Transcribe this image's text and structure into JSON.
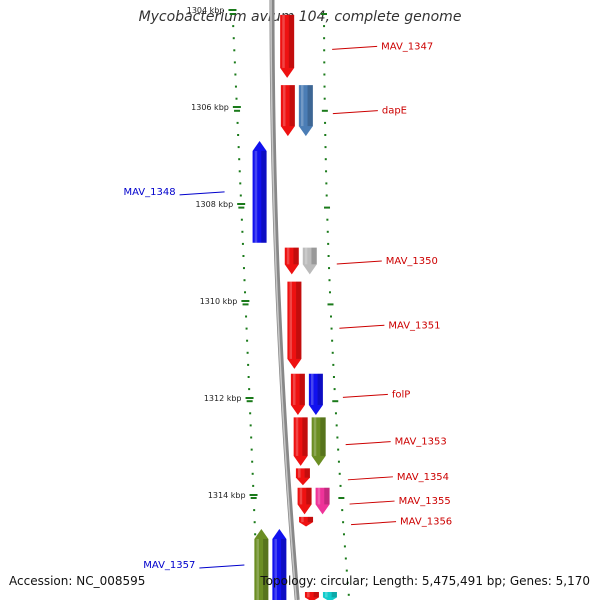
{
  "header": {
    "title": "Mycobacterium avium 104, complete genome"
  },
  "footer": {
    "accession": "Accession: NC_008595",
    "summary": "Topology: circular; Length: 5,475,491 bp; Genes: 5,170"
  },
  "colors": {
    "red": "#ee1111",
    "blue": "#1111ee",
    "steel_blue": "#4b7db5",
    "olive": "#6b8e23",
    "gray": "#bbbbbb",
    "magenta": "#ee3399",
    "light_blue": "#b0b0ff",
    "cyan": "#11cccc",
    "tick": "#1a7a1a",
    "backbone": "#888888",
    "forward_label": "#cc0000",
    "reverse_label": "#0000cc"
  },
  "axis": {
    "unit": "kbp",
    "ticks": [
      {
        "kbp": 1304,
        "label": "1304 kbp"
      },
      {
        "kbp": 1306,
        "label": "1306 kbp"
      },
      {
        "kbp": 1308,
        "label": "1308 kbp"
      },
      {
        "kbp": 1310,
        "label": "1310 kbp"
      },
      {
        "kbp": 1312,
        "label": "1312 kbp"
      },
      {
        "kbp": 1314,
        "label": "1314 kbp"
      }
    ]
  },
  "genes": [
    {
      "label": "MAV_1347",
      "strand": "forward",
      "lane": 0,
      "start_kbp": 1304.1,
      "end_kbp": 1305.4,
      "color": "red"
    },
    {
      "label": "dapE",
      "strand": "forward",
      "lane": 0,
      "start_kbp": 1305.55,
      "end_kbp": 1306.6,
      "color": "red"
    },
    {
      "label": "",
      "strand": "forward",
      "lane": 1,
      "start_kbp": 1305.55,
      "end_kbp": 1306.6,
      "color": "steel_blue"
    },
    {
      "label": "MAV_1348",
      "strand": "reverse",
      "lane": 0,
      "start_kbp": 1306.7,
      "end_kbp": 1308.8,
      "color": "blue"
    },
    {
      "label": "MAV_1350",
      "strand": "forward",
      "lane": 0,
      "start_kbp": 1308.9,
      "end_kbp": 1309.45,
      "color": "red"
    },
    {
      "label": "",
      "strand": "forward",
      "lane": 1,
      "start_kbp": 1308.9,
      "end_kbp": 1309.45,
      "color": "gray"
    },
    {
      "label": "MAV_1351",
      "strand": "forward",
      "lane": 0,
      "start_kbp": 1309.6,
      "end_kbp": 1311.4,
      "color": "red"
    },
    {
      "label": "folP",
      "strand": "forward",
      "lane": 0,
      "start_kbp": 1311.5,
      "end_kbp": 1312.35,
      "color": "red"
    },
    {
      "label": "",
      "strand": "forward",
      "lane": 1,
      "start_kbp": 1311.5,
      "end_kbp": 1312.35,
      "color": "blue"
    },
    {
      "label": "MAV_1353",
      "strand": "forward",
      "lane": 0,
      "start_kbp": 1312.4,
      "end_kbp": 1313.4,
      "color": "red"
    },
    {
      "label": "",
      "strand": "forward",
      "lane": 1,
      "start_kbp": 1312.4,
      "end_kbp": 1313.4,
      "color": "olive"
    },
    {
      "label": "MAV_1354",
      "strand": "forward",
      "lane": 0,
      "start_kbp": 1313.45,
      "end_kbp": 1313.8,
      "color": "red"
    },
    {
      "label": "MAV_1355",
      "strand": "forward",
      "lane": 0,
      "start_kbp": 1313.85,
      "end_kbp": 1314.4,
      "color": "red"
    },
    {
      "label": "",
      "strand": "forward",
      "lane": 1,
      "start_kbp": 1313.85,
      "end_kbp": 1314.4,
      "color": "magenta"
    },
    {
      "label": "MAV_1356",
      "strand": "forward",
      "lane": 0,
      "start_kbp": 1314.45,
      "end_kbp": 1314.65,
      "color": "red"
    },
    {
      "label": "MAV_1357",
      "strand": "reverse",
      "lane": 1,
      "start_kbp": 1314.7,
      "end_kbp": 1316.2,
      "color": "olive"
    },
    {
      "label": "",
      "strand": "reverse",
      "lane": 0,
      "start_kbp": 1314.7,
      "end_kbp": 1316.2,
      "color": "blue"
    },
    {
      "label": "",
      "strand": "forward",
      "lane": 0,
      "start_kbp": 1316.0,
      "end_kbp": 1316.2,
      "color": "red"
    },
    {
      "label": "",
      "strand": "forward",
      "lane": 1,
      "start_kbp": 1316.0,
      "end_kbp": 1316.2,
      "color": "cyan"
    }
  ]
}
